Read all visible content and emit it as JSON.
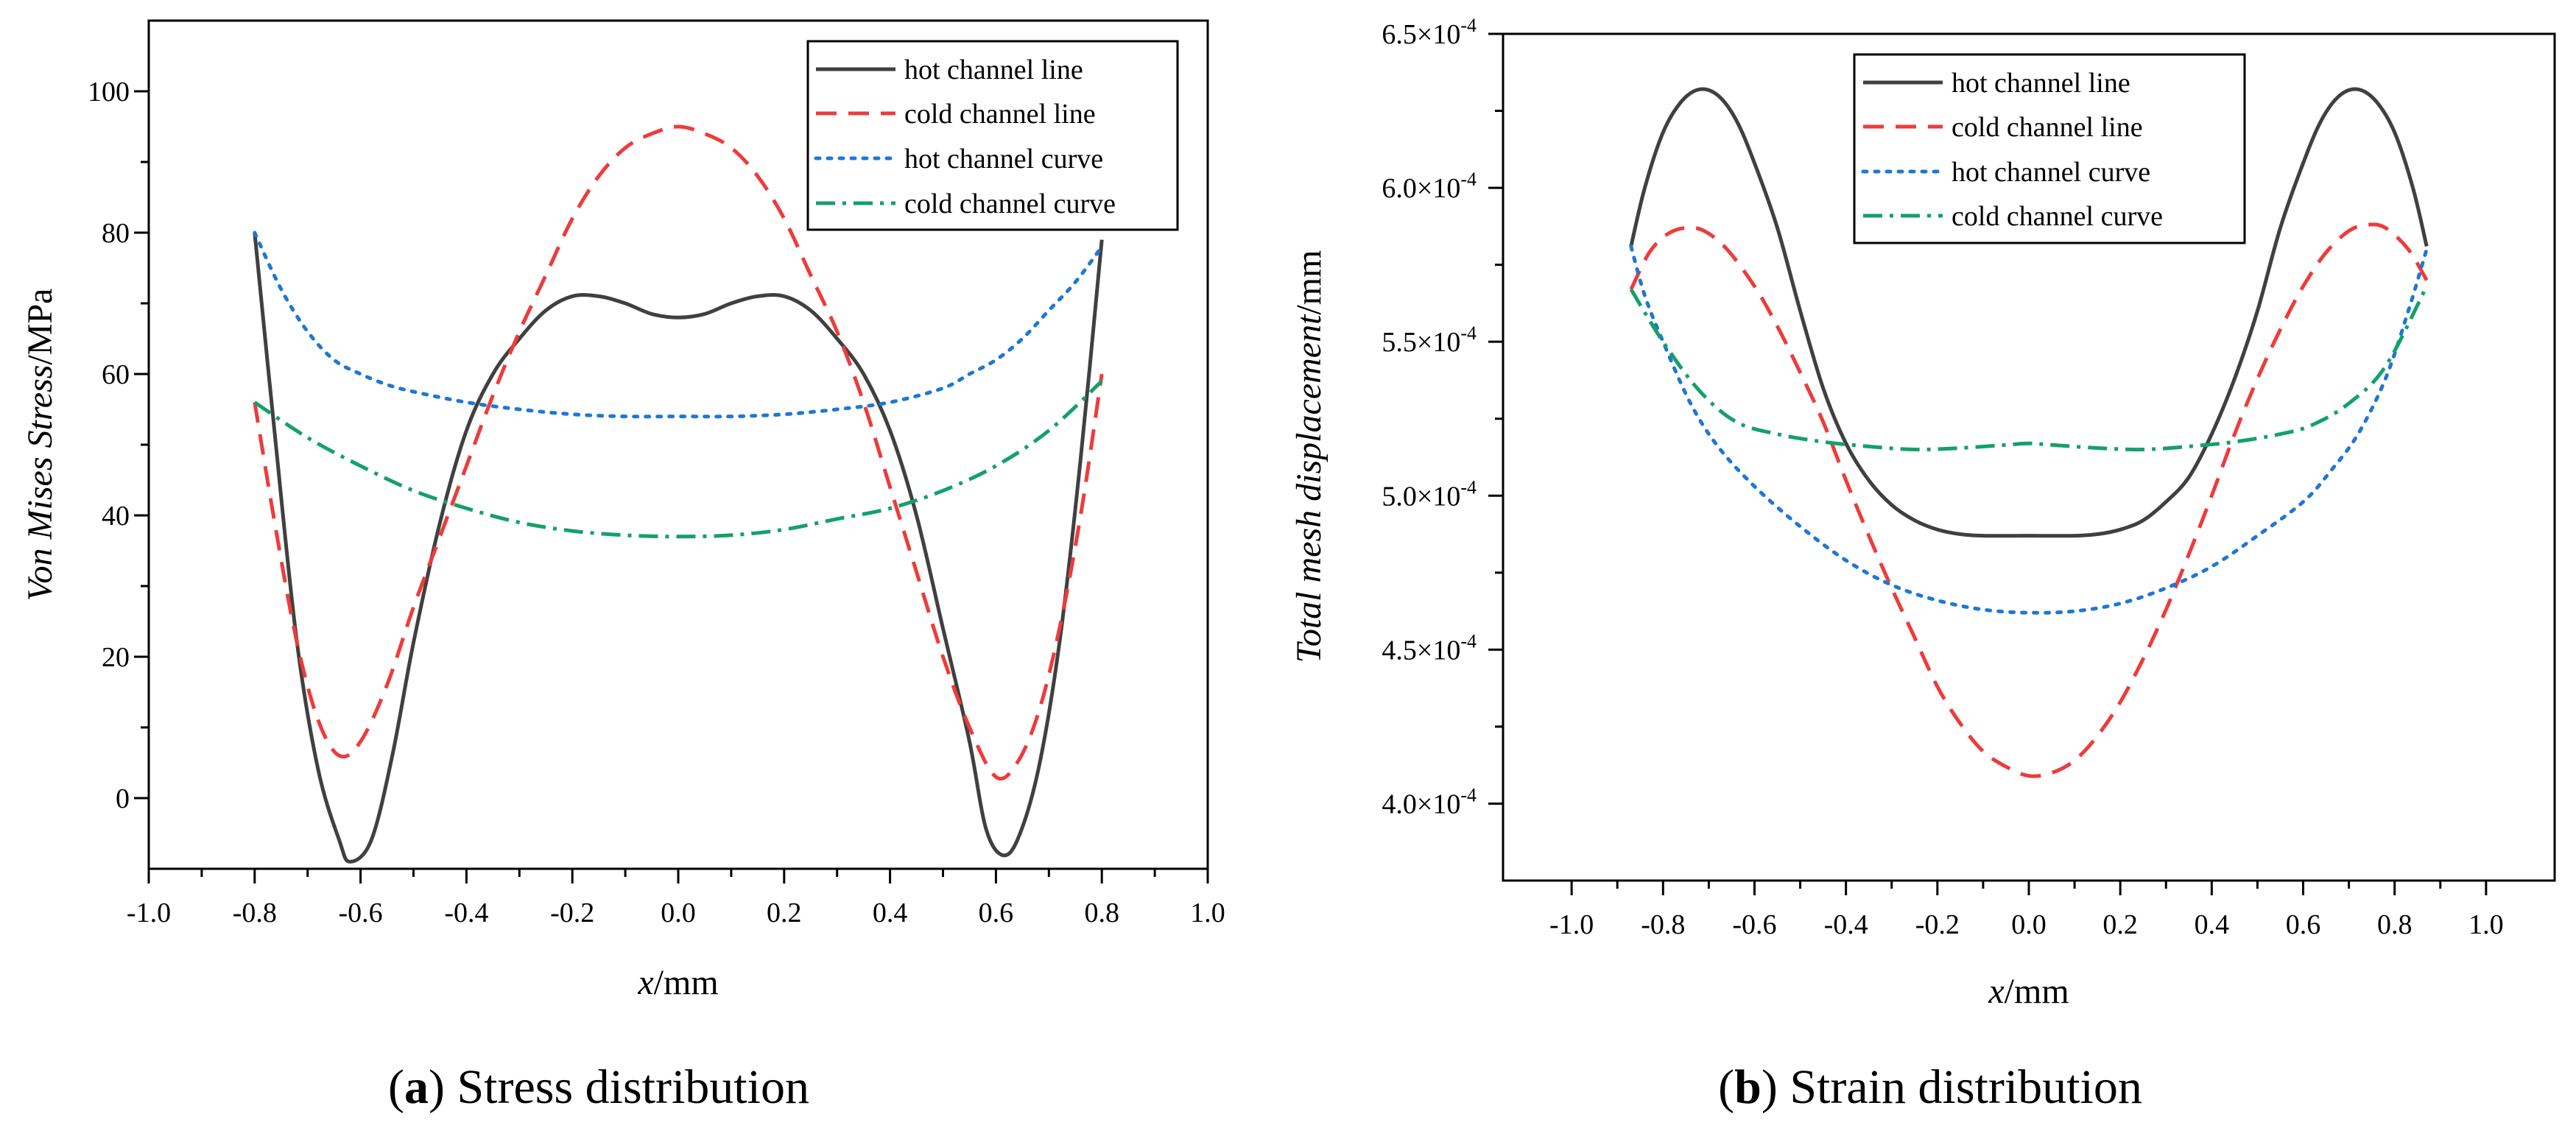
{
  "colors": {
    "hot_line": "#404040",
    "cold_line": "#ee3b3b",
    "hot_curve": "#1f77d4",
    "cold_curve": "#14a06a"
  },
  "chart_data": [
    {
      "id": "a",
      "type": "line",
      "caption_letter": "a",
      "caption_text": "Stress distribution",
      "xlabel_var": "x",
      "xlabel_unit": "/mm",
      "ylabel_var": "Von Mises Stress",
      "ylabel_unit": "/MPa",
      "xlim": [
        -1.0,
        1.0
      ],
      "ylim": [
        -10,
        110
      ],
      "xticks": [
        -1.0,
        -0.8,
        -0.6,
        -0.4,
        -0.2,
        0.0,
        0.2,
        0.4,
        0.6,
        0.8,
        1.0
      ],
      "xtick_labels": [
        "-1.0",
        "-0.8",
        "-0.6",
        "-0.4",
        "-0.2",
        "0.0",
        "0.2",
        "0.4",
        "0.6",
        "0.8",
        "1.0"
      ],
      "yticks": [
        0,
        20,
        40,
        60,
        80,
        100
      ],
      "ytick_labels": [
        "0",
        "20",
        "40",
        "60",
        "80",
        "100"
      ],
      "legend": [
        "hot channel line",
        "cold channel line",
        "hot channel curve",
        "cold channel curve"
      ],
      "series": [
        {
          "name": "hot channel line",
          "style": "solid",
          "color_key": "hot_line",
          "points": [
            [
              -0.8,
              80
            ],
            [
              -0.76,
              50
            ],
            [
              -0.72,
              22
            ],
            [
              -0.68,
              4
            ],
            [
              -0.64,
              -6
            ],
            [
              -0.62,
              -9
            ],
            [
              -0.58,
              -6
            ],
            [
              -0.54,
              6
            ],
            [
              -0.5,
              22
            ],
            [
              -0.45,
              39
            ],
            [
              -0.4,
              52
            ],
            [
              -0.35,
              60
            ],
            [
              -0.3,
              65
            ],
            [
              -0.25,
              69
            ],
            [
              -0.2,
              71
            ],
            [
              -0.15,
              71
            ],
            [
              -0.1,
              70
            ],
            [
              -0.05,
              68.5
            ],
            [
              0,
              68
            ],
            [
              0.05,
              68.5
            ],
            [
              0.1,
              70
            ],
            [
              0.15,
              71
            ],
            [
              0.2,
              71
            ],
            [
              0.25,
              69
            ],
            [
              0.3,
              65
            ],
            [
              0.35,
              60
            ],
            [
              0.4,
              52
            ],
            [
              0.45,
              40
            ],
            [
              0.5,
              24
            ],
            [
              0.55,
              8
            ],
            [
              0.58,
              -4
            ],
            [
              0.61,
              -8
            ],
            [
              0.64,
              -6
            ],
            [
              0.68,
              4
            ],
            [
              0.72,
              22
            ],
            [
              0.76,
              48
            ],
            [
              0.8,
              79
            ]
          ]
        },
        {
          "name": "cold channel line",
          "style": "dashed",
          "color_key": "cold_line",
          "points": [
            [
              -0.8,
              56
            ],
            [
              -0.76,
              38
            ],
            [
              -0.72,
              22
            ],
            [
              -0.68,
              11
            ],
            [
              -0.64,
              6
            ],
            [
              -0.6,
              8
            ],
            [
              -0.55,
              16
            ],
            [
              -0.5,
              27
            ],
            [
              -0.45,
              37
            ],
            [
              -0.4,
              47
            ],
            [
              -0.35,
              57
            ],
            [
              -0.3,
              66
            ],
            [
              -0.25,
              74
            ],
            [
              -0.2,
              82
            ],
            [
              -0.15,
              88
            ],
            [
              -0.1,
              92
            ],
            [
              -0.05,
              94
            ],
            [
              0,
              95
            ],
            [
              0.05,
              94
            ],
            [
              0.1,
              92
            ],
            [
              0.15,
              88
            ],
            [
              0.2,
              82
            ],
            [
              0.25,
              74
            ],
            [
              0.3,
              66
            ],
            [
              0.35,
              56
            ],
            [
              0.4,
              44
            ],
            [
              0.45,
              32
            ],
            [
              0.5,
              20
            ],
            [
              0.55,
              10
            ],
            [
              0.6,
              3
            ],
            [
              0.64,
              5
            ],
            [
              0.68,
              12
            ],
            [
              0.72,
              24
            ],
            [
              0.76,
              40
            ],
            [
              0.8,
              60
            ]
          ]
        },
        {
          "name": "hot channel curve",
          "style": "dotted",
          "color_key": "hot_curve",
          "points": [
            [
              -0.8,
              80
            ],
            [
              -0.75,
              72
            ],
            [
              -0.7,
              66
            ],
            [
              -0.65,
              62
            ],
            [
              -0.6,
              60
            ],
            [
              -0.55,
              58.5
            ],
            [
              -0.5,
              57.5
            ],
            [
              -0.4,
              56
            ],
            [
              -0.3,
              55
            ],
            [
              -0.2,
              54.3
            ],
            [
              -0.1,
              54
            ],
            [
              0,
              54
            ],
            [
              0.1,
              54
            ],
            [
              0.2,
              54.3
            ],
            [
              0.3,
              55
            ],
            [
              0.4,
              56
            ],
            [
              0.5,
              58
            ],
            [
              0.55,
              60
            ],
            [
              0.6,
              62
            ],
            [
              0.65,
              65
            ],
            [
              0.7,
              69
            ],
            [
              0.75,
              73
            ],
            [
              0.8,
              78
            ]
          ]
        },
        {
          "name": "cold channel curve",
          "style": "dashdot",
          "color_key": "cold_curve",
          "points": [
            [
              -0.8,
              56
            ],
            [
              -0.7,
              51
            ],
            [
              -0.6,
              47
            ],
            [
              -0.5,
              43.5
            ],
            [
              -0.4,
              41
            ],
            [
              -0.3,
              39
            ],
            [
              -0.2,
              37.8
            ],
            [
              -0.1,
              37.2
            ],
            [
              0,
              37
            ],
            [
              0.1,
              37.2
            ],
            [
              0.2,
              38
            ],
            [
              0.3,
              39.5
            ],
            [
              0.4,
              41
            ],
            [
              0.5,
              43.5
            ],
            [
              0.6,
              47
            ],
            [
              0.7,
              52
            ],
            [
              0.8,
              59
            ]
          ]
        }
      ]
    },
    {
      "id": "b",
      "type": "line",
      "caption_letter": "b",
      "caption_text": "Strain distribution",
      "xlabel_var": "x",
      "xlabel_unit": "/mm",
      "ylabel_var": "Total mesh displacement",
      "ylabel_unit": "/mm",
      "xlim": [
        -1.15,
        1.15
      ],
      "ylim": [
        3.75,
        6.5
      ],
      "xticks": [
        -1.0,
        -0.8,
        -0.6,
        -0.4,
        -0.2,
        0.0,
        0.2,
        0.4,
        0.6,
        0.8,
        1.0
      ],
      "xtick_labels": [
        "-1.0",
        "-0.8",
        "-0.6",
        "-0.4",
        "-0.2",
        "0.0",
        "0.2",
        "0.4",
        "0.6",
        "0.8",
        "1.0"
      ],
      "yticks": [
        4.0,
        4.5,
        5.0,
        5.5,
        6.0,
        6.5
      ],
      "ytick_labels": [
        "4.0×10",
        "4.5×10",
        "5.0×10",
        "5.5×10",
        "6.0×10",
        "6.5×10"
      ],
      "ytick_exponent": "-4",
      "legend": [
        "hot channel line",
        "cold channel line",
        "hot channel curve",
        "cold channel curve"
      ],
      "series": [
        {
          "name": "hot channel line",
          "style": "solid",
          "color_key": "hot_line",
          "points": [
            [
              -0.87,
              5.81
            ],
            [
              -0.84,
              6.0
            ],
            [
              -0.8,
              6.18
            ],
            [
              -0.76,
              6.28
            ],
            [
              -0.72,
              6.32
            ],
            [
              -0.68,
              6.3
            ],
            [
              -0.64,
              6.22
            ],
            [
              -0.6,
              6.08
            ],
            [
              -0.55,
              5.87
            ],
            [
              -0.5,
              5.6
            ],
            [
              -0.45,
              5.35
            ],
            [
              -0.4,
              5.17
            ],
            [
              -0.35,
              5.05
            ],
            [
              -0.3,
              4.97
            ],
            [
              -0.25,
              4.92
            ],
            [
              -0.2,
              4.89
            ],
            [
              -0.15,
              4.875
            ],
            [
              -0.1,
              4.87
            ],
            [
              0,
              4.87
            ],
            [
              0.1,
              4.87
            ],
            [
              0.15,
              4.875
            ],
            [
              0.2,
              4.89
            ],
            [
              0.25,
              4.92
            ],
            [
              0.3,
              4.98
            ],
            [
              0.35,
              5.06
            ],
            [
              0.4,
              5.2
            ],
            [
              0.45,
              5.38
            ],
            [
              0.5,
              5.6
            ],
            [
              0.55,
              5.87
            ],
            [
              0.6,
              6.08
            ],
            [
              0.64,
              6.22
            ],
            [
              0.68,
              6.3
            ],
            [
              0.72,
              6.32
            ],
            [
              0.76,
              6.28
            ],
            [
              0.8,
              6.18
            ],
            [
              0.84,
              6.0
            ],
            [
              0.87,
              5.81
            ]
          ]
        },
        {
          "name": "cold channel line",
          "style": "dashed",
          "color_key": "cold_line",
          "points": [
            [
              -0.87,
              5.67
            ],
            [
              -0.83,
              5.79
            ],
            [
              -0.79,
              5.85
            ],
            [
              -0.75,
              5.87
            ],
            [
              -0.71,
              5.86
            ],
            [
              -0.66,
              5.8
            ],
            [
              -0.6,
              5.68
            ],
            [
              -0.55,
              5.55
            ],
            [
              -0.5,
              5.4
            ],
            [
              -0.45,
              5.24
            ],
            [
              -0.4,
              5.05
            ],
            [
              -0.35,
              4.87
            ],
            [
              -0.3,
              4.7
            ],
            [
              -0.25,
              4.54
            ],
            [
              -0.2,
              4.38
            ],
            [
              -0.15,
              4.26
            ],
            [
              -0.1,
              4.17
            ],
            [
              -0.05,
              4.12
            ],
            [
              0,
              4.09
            ],
            [
              0.05,
              4.1
            ],
            [
              0.1,
              4.14
            ],
            [
              0.15,
              4.22
            ],
            [
              0.2,
              4.33
            ],
            [
              0.25,
              4.47
            ],
            [
              0.3,
              4.63
            ],
            [
              0.35,
              4.81
            ],
            [
              0.4,
              5.0
            ],
            [
              0.45,
              5.2
            ],
            [
              0.5,
              5.38
            ],
            [
              0.55,
              5.54
            ],
            [
              0.6,
              5.68
            ],
            [
              0.65,
              5.79
            ],
            [
              0.7,
              5.86
            ],
            [
              0.74,
              5.88
            ],
            [
              0.78,
              5.87
            ],
            [
              0.83,
              5.8
            ],
            [
              0.87,
              5.7
            ]
          ]
        },
        {
          "name": "hot channel curve",
          "style": "dotted",
          "color_key": "hot_curve",
          "points": [
            [
              -0.87,
              5.81
            ],
            [
              -0.84,
              5.65
            ],
            [
              -0.8,
              5.5
            ],
            [
              -0.74,
              5.3
            ],
            [
              -0.68,
              5.16
            ],
            [
              -0.6,
              5.03
            ],
            [
              -0.5,
              4.9
            ],
            [
              -0.4,
              4.79
            ],
            [
              -0.3,
              4.71
            ],
            [
              -0.2,
              4.66
            ],
            [
              -0.1,
              4.63
            ],
            [
              0,
              4.62
            ],
            [
              0.1,
              4.625
            ],
            [
              0.2,
              4.65
            ],
            [
              0.3,
              4.7
            ],
            [
              0.4,
              4.77
            ],
            [
              0.5,
              4.87
            ],
            [
              0.6,
              4.98
            ],
            [
              0.66,
              5.08
            ],
            [
              0.72,
              5.2
            ],
            [
              0.78,
              5.38
            ],
            [
              0.83,
              5.6
            ],
            [
              0.87,
              5.8
            ]
          ]
        },
        {
          "name": "cold channel curve",
          "style": "dashdot",
          "color_key": "cold_curve",
          "points": [
            [
              -0.87,
              5.67
            ],
            [
              -0.8,
              5.5
            ],
            [
              -0.72,
              5.34
            ],
            [
              -0.64,
              5.24
            ],
            [
              -0.55,
              5.2
            ],
            [
              -0.45,
              5.175
            ],
            [
              -0.35,
              5.16
            ],
            [
              -0.25,
              5.15
            ],
            [
              -0.15,
              5.155
            ],
            [
              -0.05,
              5.165
            ],
            [
              0,
              5.17
            ],
            [
              0.05,
              5.165
            ],
            [
              0.15,
              5.155
            ],
            [
              0.25,
              5.15
            ],
            [
              0.35,
              5.16
            ],
            [
              0.45,
              5.175
            ],
            [
              0.55,
              5.2
            ],
            [
              0.62,
              5.23
            ],
            [
              0.7,
              5.3
            ],
            [
              0.78,
              5.42
            ],
            [
              0.87,
              5.68
            ]
          ]
        }
      ]
    }
  ]
}
